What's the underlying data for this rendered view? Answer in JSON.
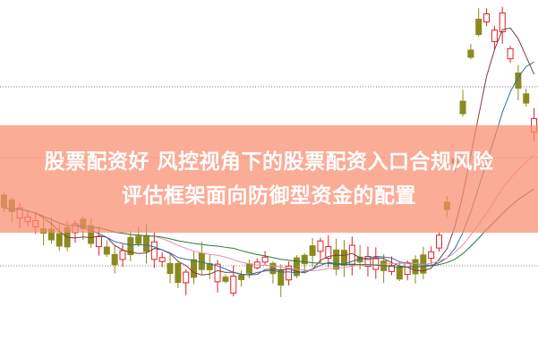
{
  "chart_data": {
    "type": "candlestick",
    "title": "",
    "colors": {
      "up": "#e0202a",
      "down": "#8a8a1e",
      "ma1": "#7a3f3f",
      "ma2": "#2a7a3a",
      "ma3": "#e890b0",
      "ma4": "#2f6fa0",
      "grid": "#9a7a7a"
    },
    "grid": true
  },
  "banner": {
    "line1": "股票配资好 风控视角下的股票配资入口合规风险",
    "line2": "评估框架面向防御型资金的配置"
  }
}
